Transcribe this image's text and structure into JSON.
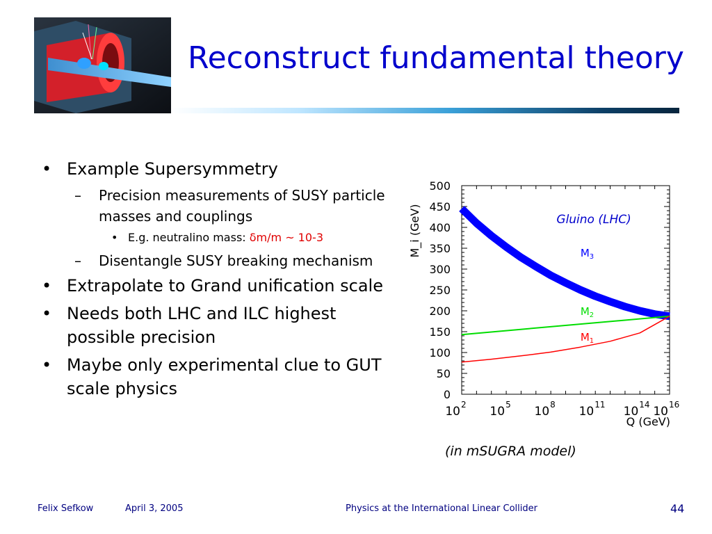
{
  "slide": {
    "title": "Reconstruct fundamental theory",
    "bullets": [
      {
        "level": 1,
        "marker": "•",
        "text": "Example Supersymmetry"
      },
      {
        "level": 2,
        "marker": "–",
        "text": "Precision measurements of SUSY particle masses and couplings"
      },
      {
        "level": 3,
        "marker": "•",
        "text": "E.g. neutralino mass: ",
        "highlight": "δm/m ~ 10-3"
      },
      {
        "level": 2,
        "marker": "–",
        "text": "Disentangle SUSY breaking mechanism"
      },
      {
        "level": 1,
        "marker": "•",
        "text": "Extrapolate to Grand unification scale"
      },
      {
        "level": 1,
        "marker": "•",
        "text": "Needs both LHC and ILC highest possible precision"
      },
      {
        "level": 1,
        "marker": "•",
        "text": "Maybe only experimental clue to GUT scale physics"
      }
    ],
    "model_note": "(in mSUGRA model)"
  },
  "footer": {
    "author": "Felix Sefkow",
    "date": "April 3, 2005",
    "event": "Physics at the International Linear Collider",
    "page": "44"
  },
  "colors": {
    "title": "#0000cc",
    "highlight": "#e00000",
    "footer": "#000080"
  },
  "chart_data": {
    "type": "line",
    "ylabel": "M_i (GeV)",
    "xlabel": "Q (GeV)",
    "xscale": "log10",
    "xlim_exp": [
      2,
      16
    ],
    "ylim": [
      0,
      500
    ],
    "y_ticks": [
      0,
      50,
      100,
      150,
      200,
      250,
      300,
      350,
      400,
      450,
      500
    ],
    "x_tick_exponents": [
      2,
      5,
      8,
      11,
      14,
      16
    ],
    "x_tick_base": "10",
    "annotation": "Gluino (LHC)",
    "series": [
      {
        "name": "M3",
        "label_main": "M",
        "label_sub": "3",
        "color": "#0000ff",
        "points": [
          [
            2,
            445
          ],
          [
            3,
            410
          ],
          [
            4,
            380
          ],
          [
            5,
            353
          ],
          [
            6,
            328
          ],
          [
            7,
            306
          ],
          [
            8,
            285
          ],
          [
            9,
            267
          ],
          [
            10,
            250
          ],
          [
            11,
            235
          ],
          [
            12,
            222
          ],
          [
            13,
            210
          ],
          [
            14,
            200
          ],
          [
            15,
            192
          ],
          [
            16,
            187
          ]
        ]
      },
      {
        "name": "M2",
        "label_main": "M",
        "label_sub": "2",
        "color": "#00dd00",
        "points": [
          [
            2,
            143
          ],
          [
            16,
            187
          ]
        ]
      },
      {
        "name": "M1",
        "label_main": "M",
        "label_sub": "1",
        "color": "#ff0000",
        "points": [
          [
            2,
            77
          ],
          [
            4,
            84
          ],
          [
            6,
            92
          ],
          [
            8,
            101
          ],
          [
            10,
            113
          ],
          [
            12,
            127
          ],
          [
            14,
            147
          ],
          [
            16,
            187
          ]
        ]
      }
    ]
  }
}
